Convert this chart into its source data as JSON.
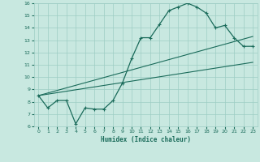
{
  "xlabel": "Humidex (Indice chaleur)",
  "xlim": [
    -0.5,
    23.5
  ],
  "ylim": [
    6,
    16
  ],
  "xticks": [
    0,
    1,
    2,
    3,
    4,
    5,
    6,
    7,
    8,
    9,
    10,
    11,
    12,
    13,
    14,
    15,
    16,
    17,
    18,
    19,
    20,
    21,
    22,
    23
  ],
  "yticks": [
    6,
    7,
    8,
    9,
    10,
    11,
    12,
    13,
    14,
    15,
    16
  ],
  "bg_color": "#c8e8e0",
  "line_color": "#1a6b5a",
  "grid_color": "#9ecdc4",
  "main_x": [
    0,
    1,
    2,
    3,
    4,
    5,
    6,
    7,
    8,
    9,
    10,
    11,
    12,
    13,
    14,
    15,
    16,
    17,
    18,
    19,
    20,
    21,
    22,
    23
  ],
  "main_y": [
    8.5,
    7.5,
    8.1,
    8.1,
    6.2,
    7.5,
    7.4,
    7.4,
    8.1,
    9.5,
    11.5,
    13.2,
    13.2,
    14.3,
    15.4,
    15.7,
    16.0,
    15.7,
    15.2,
    14.0,
    14.2,
    13.2,
    12.5,
    12.5
  ],
  "line2_x": [
    0,
    23
  ],
  "line2_y": [
    8.5,
    11.2
  ],
  "line3_x": [
    0,
    23
  ],
  "line3_y": [
    8.5,
    13.3
  ]
}
